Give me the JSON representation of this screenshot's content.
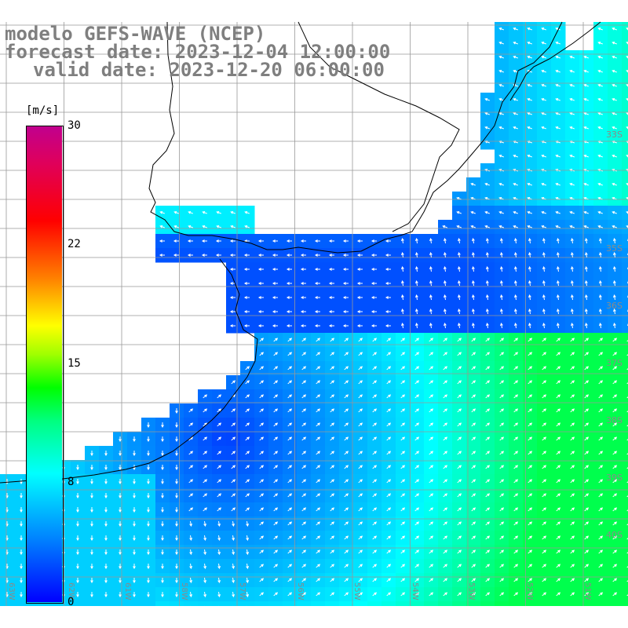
{
  "title": {
    "model": "modelo GEFS-WAVE (NCEP)",
    "forecast": "forecast date: 2023-12-04 12:00:00",
    "valid": "valid date: 2023-12-20 06:00:00"
  },
  "colorbar": {
    "unit": "[m/s]",
    "ticks": [
      {
        "label": "30",
        "value": 30
      },
      {
        "label": "22",
        "value": 22
      },
      {
        "label": "15",
        "value": 15
      },
      {
        "label": "8",
        "value": 8
      },
      {
        "label": "0",
        "value": 0
      }
    ],
    "range": [
      0,
      30
    ],
    "colors": [
      "#0000ff",
      "#0080ff",
      "#00ffff",
      "#00ff80",
      "#00ff00",
      "#80ff00",
      "#ffff00",
      "#ff8000",
      "#ff0000",
      "#e00060",
      "#c0008f"
    ]
  },
  "grid": {
    "lat_labels": [
      "33S",
      "35S",
      "36S",
      "37S",
      "38S",
      "39S",
      "40S"
    ],
    "lon_labels": [
      "63W",
      "62W",
      "61W",
      "58W",
      "57W",
      "56W",
      "55W",
      "54W",
      "53W",
      "52W",
      "51W"
    ]
  },
  "map": {
    "land_color": "#ffffff",
    "grid_color": "#999999",
    "coast_color": "#000000",
    "arrow_color": "#ffffff"
  }
}
